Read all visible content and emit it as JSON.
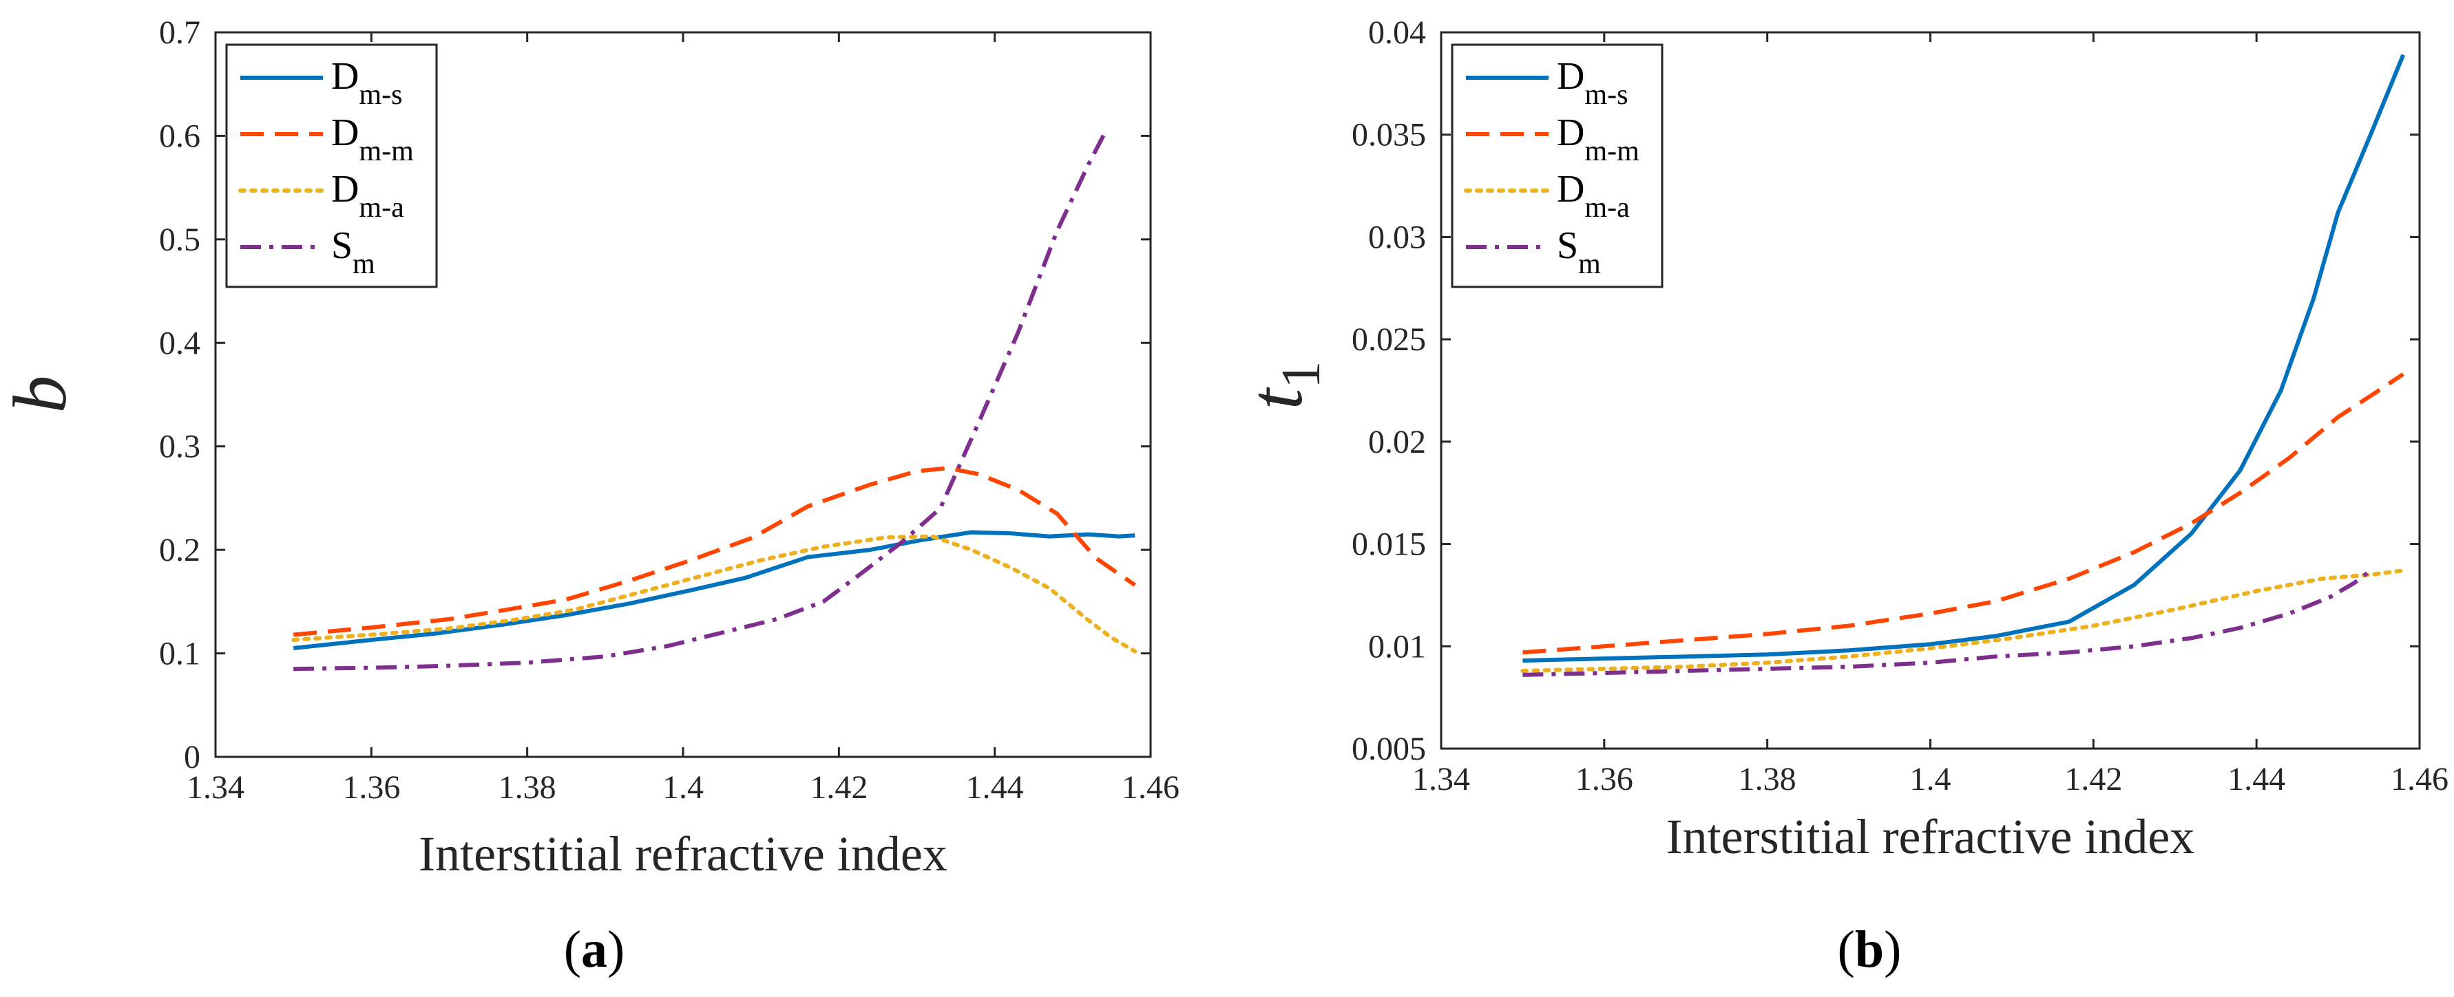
{
  "colors": {
    "D_ms": "#0072BD",
    "D_mm": "#FF4500",
    "D_ma": "#EDB120",
    "S_m": "#7E2F8E",
    "axis": "#262626"
  },
  "legend_labels": [
    {
      "main": "D",
      "sub": "m-s"
    },
    {
      "main": "D",
      "sub": "m-m"
    },
    {
      "main": "D",
      "sub": "m-a"
    },
    {
      "main": "S",
      "sub": "m"
    }
  ],
  "chart_data": [
    {
      "type": "line",
      "panel": "(a)",
      "caption_letter": "a",
      "title": "",
      "xlabel": "Interstitial refractive index",
      "ylabel": "b",
      "ylabel_sub": "",
      "xlim": [
        1.34,
        1.46
      ],
      "ylim": [
        0,
        0.7
      ],
      "xticks": [
        1.34,
        1.36,
        1.38,
        1.4,
        1.42,
        1.44,
        1.46
      ],
      "xtick_labels": [
        "1.34",
        "1.36",
        "1.38",
        "1.4",
        "1.42",
        "1.44",
        "1.46"
      ],
      "yticks": [
        0,
        0.1,
        0.2,
        0.3,
        0.4,
        0.5,
        0.6,
        0.7
      ],
      "ytick_labels": [
        "0",
        "0.1",
        "0.2",
        "0.3",
        "0.4",
        "0.5",
        "0.6",
        "0.7"
      ],
      "legend_position": "top-left",
      "series": [
        {
          "name": "D m-s",
          "key": "D_ms",
          "style": "solid",
          "x": [
            1.35,
            1.36,
            1.368,
            1.377,
            1.385,
            1.393,
            1.401,
            1.408,
            1.416,
            1.424,
            1.431,
            1.437,
            1.442,
            1.447,
            1.452,
            1.456,
            1.458
          ],
          "y": [
            0.105,
            0.113,
            0.119,
            0.128,
            0.137,
            0.148,
            0.161,
            0.173,
            0.193,
            0.2,
            0.21,
            0.217,
            0.216,
            0.213,
            0.215,
            0.213,
            0.214
          ]
        },
        {
          "name": "D m-m",
          "key": "D_mm",
          "style": "dashed",
          "x": [
            1.35,
            1.36,
            1.37,
            1.378,
            1.385,
            1.393,
            1.401,
            1.409,
            1.416,
            1.424,
            1.43,
            1.434,
            1.438,
            1.443,
            1.448,
            1.453,
            1.458
          ],
          "y": [
            0.118,
            0.125,
            0.133,
            0.143,
            0.152,
            0.17,
            0.19,
            0.212,
            0.242,
            0.263,
            0.276,
            0.279,
            0.273,
            0.258,
            0.235,
            0.192,
            0.166
          ]
        },
        {
          "name": "D m-a",
          "key": "D_ma",
          "style": "dotted",
          "x": [
            1.35,
            1.36,
            1.37,
            1.378,
            1.386,
            1.394,
            1.402,
            1.41,
            1.418,
            1.426,
            1.432,
            1.437,
            1.442,
            1.447,
            1.452,
            1.455,
            1.458
          ],
          "y": [
            0.113,
            0.118,
            0.124,
            0.132,
            0.142,
            0.158,
            0.174,
            0.19,
            0.203,
            0.212,
            0.213,
            0.2,
            0.183,
            0.163,
            0.132,
            0.115,
            0.102
          ]
        },
        {
          "name": "S m",
          "key": "S_m",
          "style": "dashdot",
          "x": [
            1.35,
            1.36,
            1.37,
            1.38,
            1.39,
            1.398,
            1.405,
            1.412,
            1.418,
            1.423,
            1.428,
            1.433,
            1.438,
            1.443,
            1.448,
            1.452,
            1.454
          ],
          "y": [
            0.085,
            0.086,
            0.088,
            0.091,
            0.097,
            0.107,
            0.12,
            0.133,
            0.15,
            0.178,
            0.207,
            0.24,
            0.324,
            0.41,
            0.508,
            0.572,
            0.601
          ]
        }
      ]
    },
    {
      "type": "line",
      "panel": "(b)",
      "caption_letter": "b",
      "title": "",
      "xlabel": "Interstitial refractive index",
      "ylabel": "t",
      "ylabel_sub": "1",
      "xlim": [
        1.34,
        1.46
      ],
      "ylim": [
        0.005,
        0.04
      ],
      "xticks": [
        1.34,
        1.36,
        1.38,
        1.4,
        1.42,
        1.44,
        1.46
      ],
      "xtick_labels": [
        "1.34",
        "1.36",
        "1.38",
        "1.4",
        "1.42",
        "1.44",
        "1.46"
      ],
      "yticks": [
        0.005,
        0.01,
        0.015,
        0.02,
        0.025,
        0.03,
        0.035,
        0.04
      ],
      "ytick_labels": [
        "0.005",
        "0.01",
        "0.015",
        "0.02",
        "0.025",
        "0.03",
        "0.035",
        "0.04"
      ],
      "legend_position": "top-left",
      "series": [
        {
          "name": "D m-s",
          "key": "D_ms",
          "style": "solid",
          "x": [
            1.35,
            1.36,
            1.37,
            1.38,
            1.39,
            1.4,
            1.408,
            1.417,
            1.425,
            1.432,
            1.438,
            1.443,
            1.447,
            1.45,
            1.454,
            1.458
          ],
          "y": [
            0.0093,
            0.0094,
            0.0095,
            0.0096,
            0.0098,
            0.0101,
            0.0105,
            0.0112,
            0.013,
            0.0155,
            0.0186,
            0.0225,
            0.027,
            0.0312,
            0.035,
            0.0389
          ]
        },
        {
          "name": "D m-m",
          "key": "D_mm",
          "style": "dashed",
          "x": [
            1.35,
            1.36,
            1.37,
            1.38,
            1.39,
            1.4,
            1.408,
            1.417,
            1.425,
            1.432,
            1.438,
            1.444,
            1.45,
            1.455,
            1.458
          ],
          "y": [
            0.0097,
            0.01,
            0.0103,
            0.0106,
            0.011,
            0.0116,
            0.0122,
            0.0133,
            0.0146,
            0.016,
            0.0175,
            0.0192,
            0.0212,
            0.0225,
            0.0233
          ]
        },
        {
          "name": "D m-a",
          "key": "D_ma",
          "style": "dotted",
          "x": [
            1.35,
            1.36,
            1.37,
            1.38,
            1.39,
            1.4,
            1.41,
            1.42,
            1.43,
            1.44,
            1.448,
            1.454,
            1.458
          ],
          "y": [
            0.0088,
            0.0089,
            0.009,
            0.0092,
            0.0095,
            0.0099,
            0.0104,
            0.011,
            0.0118,
            0.0127,
            0.0133,
            0.0135,
            0.0137
          ]
        },
        {
          "name": "S m",
          "key": "S_m",
          "style": "dashdot",
          "x": [
            1.35,
            1.36,
            1.37,
            1.38,
            1.39,
            1.4,
            1.408,
            1.417,
            1.425,
            1.432,
            1.438,
            1.444,
            1.449,
            1.452,
            1.454
          ],
          "y": [
            0.0086,
            0.0087,
            0.0088,
            0.0089,
            0.009,
            0.0092,
            0.0095,
            0.0097,
            0.01,
            0.0104,
            0.0109,
            0.0116,
            0.0124,
            0.0131,
            0.0137
          ]
        }
      ]
    }
  ]
}
